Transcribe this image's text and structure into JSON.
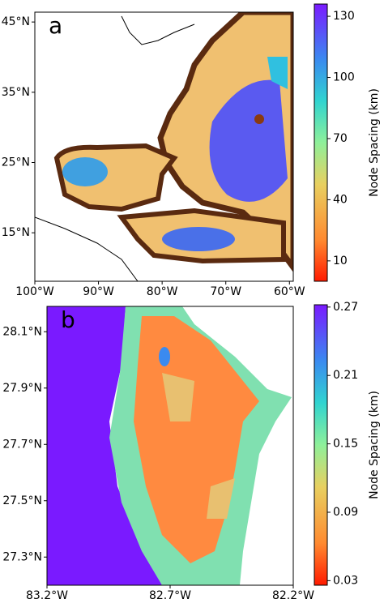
{
  "panels": [
    {
      "label": "a",
      "xlim": [
        -100,
        -59.4
      ],
      "ylim": [
        8.1,
        46.4
      ],
      "xticks": [
        {
          "value": -100,
          "label": "100°W"
        },
        {
          "value": -90,
          "label": "90°W"
        },
        {
          "value": -80,
          "label": "80°W"
        },
        {
          "value": -70,
          "label": "70°W"
        },
        {
          "value": -60,
          "label": "60°W"
        }
      ],
      "yticks": [
        {
          "value": 15,
          "label": "15°N"
        },
        {
          "value": 25,
          "label": "25°N"
        },
        {
          "value": 35,
          "label": "35°N"
        },
        {
          "value": 45,
          "label": "45°N"
        }
      ],
      "colorbar": {
        "label": "Node Spacing (km)",
        "clim": [
          0,
          136
        ],
        "ticks": [
          10,
          40,
          70,
          100,
          130
        ]
      }
    },
    {
      "label": "b",
      "xlim": [
        -83.2,
        -82.2
      ],
      "ylim": [
        27.2,
        28.19
      ],
      "xticks": [
        {
          "value": -83.2,
          "label": "83.2°W"
        },
        {
          "value": -82.7,
          "label": "82.7°W"
        },
        {
          "value": -82.2,
          "label": "82.2°W"
        }
      ],
      "yticks": [
        {
          "value": 27.3,
          "label": "27.3°N"
        },
        {
          "value": 27.5,
          "label": "27.5°N"
        },
        {
          "value": 27.7,
          "label": "27.7°N"
        },
        {
          "value": 27.9,
          "label": "27.9°N"
        },
        {
          "value": 28.1,
          "label": "28.1°N"
        }
      ],
      "colorbar": {
        "label": "Node Spacing (km)",
        "clim": [
          0.026,
          0.272
        ],
        "ticks": [
          0.03,
          0.09,
          0.15,
          0.21,
          0.27
        ]
      }
    }
  ]
}
